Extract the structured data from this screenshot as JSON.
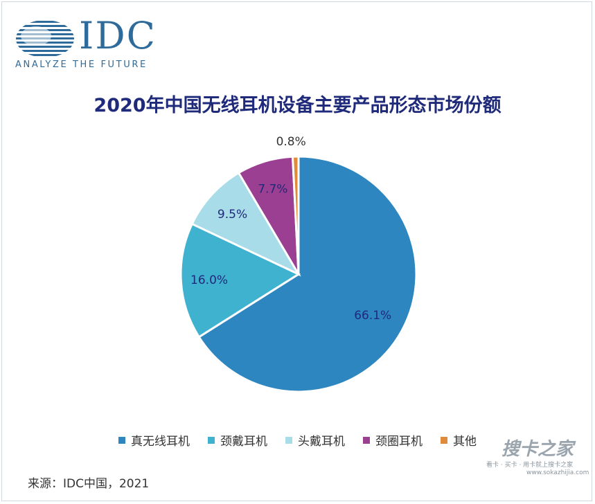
{
  "logo": {
    "text": "IDC",
    "tagline": "ANALYZE THE FUTURE"
  },
  "chart_data": {
    "type": "pie",
    "title": "2020年中国无线耳机设备主要产品形态市场份额",
    "series": [
      {
        "name": "真无线耳机",
        "value": 66.1,
        "label": "66.1%",
        "color": "#2e86c1"
      },
      {
        "name": "颈戴耳机",
        "value": 16.0,
        "label": "16.0%",
        "color": "#3fb2d0"
      },
      {
        "name": "头戴耳机",
        "value": 9.5,
        "label": "9.5%",
        "color": "#a8dce8"
      },
      {
        "name": "颈圈耳机",
        "value": 7.7,
        "label": "7.7%",
        "color": "#9b3f93"
      },
      {
        "name": "其他",
        "value": 0.8,
        "label": "0.8%",
        "color": "#e08a3a"
      }
    ],
    "legend_position": "bottom"
  },
  "source": "来源：IDC中国，2021",
  "watermark": {
    "main": "搜卡之家",
    "sub": "看卡 · 买卡 · 用卡就上搜卡之家",
    "url": "www.sokazhijia.com"
  }
}
